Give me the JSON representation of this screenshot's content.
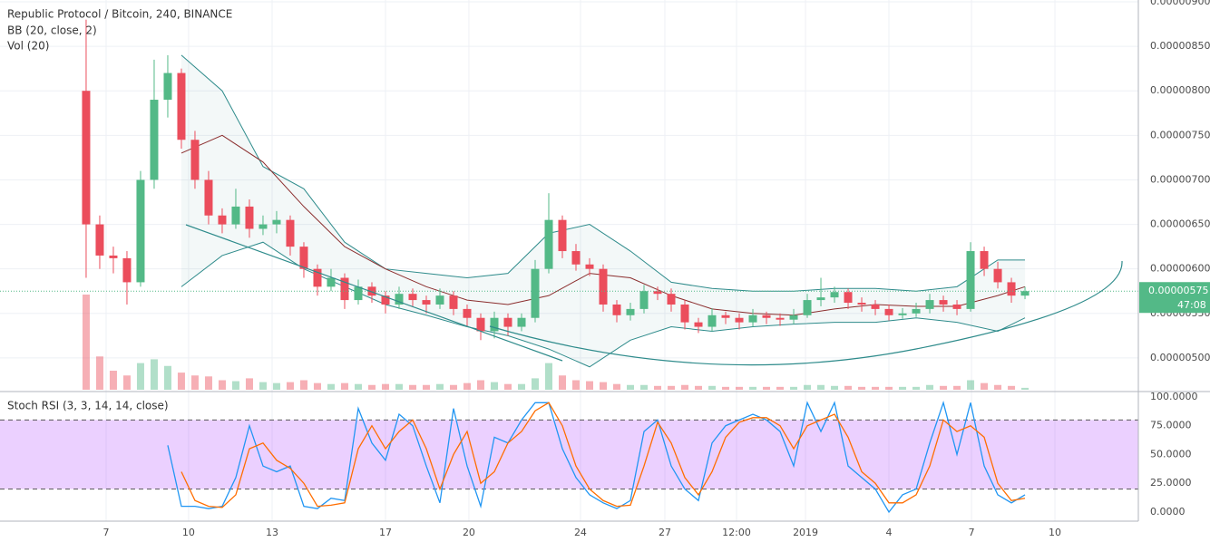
{
  "chart_data": [
    {
      "type": "candlestick",
      "title": "Republic Protocol / Bitcoin, 240, BINANCE",
      "indicators": [
        "BB (20, close, 2)",
        "Vol (20)"
      ],
      "up_color": "#53b987",
      "down_color": "#eb4d5c",
      "xlim": [
        -6.33,
        77.33
      ],
      "ylim": [
        4.643e-06,
        9.02e-06
      ],
      "yticks": [
        {
          "value": 5e-06,
          "label": "0.00000500"
        },
        {
          "value": 5.5e-06,
          "label": "0.00000550"
        },
        {
          "value": 6e-06,
          "label": "0.00000600"
        },
        {
          "value": 6.5e-06,
          "label": "0.00000650"
        },
        {
          "value": 7e-06,
          "label": "0.00000700"
        },
        {
          "value": 7.5e-06,
          "label": "0.00000750"
        },
        {
          "value": 8e-06,
          "label": "0.00000800"
        },
        {
          "value": 8.5e-06,
          "label": "0.00000850"
        },
        {
          "value": 9e-06,
          "label": "0.00000900"
        }
      ],
      "grid": true,
      "open": [
        8e-06,
        6.5e-06,
        6.15e-06,
        6.12e-06,
        5.85e-06,
        7e-06,
        7.9e-06,
        8.2e-06,
        7.45e-06,
        7e-06,
        6.6e-06,
        6.5e-06,
        6.7e-06,
        6.45e-06,
        6.5e-06,
        6.55e-06,
        6.25e-06,
        6e-06,
        5.8e-06,
        5.9e-06,
        5.65e-06,
        5.8e-06,
        5.7e-06,
        5.6e-06,
        5.72e-06,
        5.65e-06,
        5.6e-06,
        5.7e-06,
        5.55e-06,
        5.45e-06,
        5.3e-06,
        5.45e-06,
        5.35e-06,
        5.45e-06,
        6e-06,
        6.55e-06,
        6.2e-06,
        6.05e-06,
        6e-06,
        5.6e-06,
        5.48e-06,
        5.55e-06,
        5.75e-06,
        5.72e-06,
        5.6e-06,
        5.4e-06,
        5.35e-06,
        5.48e-06,
        5.45e-06,
        5.4e-06,
        5.48e-06,
        5.45e-06,
        5.43e-06,
        5.48e-06,
        5.65e-06,
        5.68e-06,
        5.74e-06,
        5.62e-06,
        5.6e-06,
        5.55e-06,
        5.48e-06,
        5.5e-06,
        5.55e-06,
        5.65e-06,
        5.6e-06,
        5.55e-06,
        6.2e-06,
        6e-06,
        5.85e-06,
        5.7e-06
      ],
      "high": [
        8.8e-06,
        6.6e-06,
        6.25e-06,
        6.2e-06,
        7.1e-06,
        8.35e-06,
        8.4e-06,
        8.25e-06,
        7.55e-06,
        7.1e-06,
        6.68e-06,
        6.9e-06,
        6.78e-06,
        6.6e-06,
        6.65e-06,
        6.6e-06,
        6.3e-06,
        6.05e-06,
        6e-06,
        5.95e-06,
        5.88e-06,
        5.85e-06,
        5.75e-06,
        5.8e-06,
        5.78e-06,
        5.7e-06,
        5.78e-06,
        5.75e-06,
        5.6e-06,
        5.5e-06,
        5.52e-06,
        5.5e-06,
        5.5e-06,
        6.1e-06,
        6.85e-06,
        6.6e-06,
        6.28e-06,
        6.12e-06,
        6.05e-06,
        5.65e-06,
        5.62e-06,
        5.82e-06,
        5.8e-06,
        5.78e-06,
        5.65e-06,
        5.45e-06,
        5.56e-06,
        5.52e-06,
        5.5e-06,
        5.55e-06,
        5.52e-06,
        5.5e-06,
        5.55e-06,
        5.72e-06,
        5.9e-06,
        5.8e-06,
        5.78e-06,
        5.68e-06,
        5.65e-06,
        5.6e-06,
        5.56e-06,
        5.62e-06,
        5.72e-06,
        5.7e-06,
        5.65e-06,
        6.3e-06,
        6.25e-06,
        6.08e-06,
        5.9e-06,
        5.8e-06
      ],
      "low": [
        5.9e-06,
        6e-06,
        5.95e-06,
        5.6e-06,
        5.8e-06,
        6.9e-06,
        7.7e-06,
        7.35e-06,
        6.9e-06,
        6.5e-06,
        6.4e-06,
        6.45e-06,
        6.35e-06,
        6.38e-06,
        6.4e-06,
        6.15e-06,
        5.9e-06,
        5.7e-06,
        5.75e-06,
        5.55e-06,
        5.6e-06,
        5.62e-06,
        5.5e-06,
        5.55e-06,
        5.58e-06,
        5.5e-06,
        5.55e-06,
        5.48e-06,
        5.35e-06,
        5.2e-06,
        5.22e-06,
        5.25e-06,
        5.3e-06,
        5.4e-06,
        5.95e-06,
        6.12e-06,
        5.98e-06,
        5.92e-06,
        5.52e-06,
        5.4e-06,
        5.42e-06,
        5.5e-06,
        5.65e-06,
        5.52e-06,
        5.32e-06,
        5.28e-06,
        5.3e-06,
        5.38e-06,
        5.32e-06,
        5.35e-06,
        5.38e-06,
        5.36e-06,
        5.38e-06,
        5.45e-06,
        5.58e-06,
        5.62e-06,
        5.55e-06,
        5.52e-06,
        5.48e-06,
        5.42e-06,
        5.44e-06,
        5.46e-06,
        5.5e-06,
        5.52e-06,
        5.48e-06,
        5.52e-06,
        5.92e-06,
        5.78e-06,
        5.62e-06,
        5.66e-06
      ],
      "close": [
        6.5e-06,
        6.15e-06,
        6.12e-06,
        5.85e-06,
        7e-06,
        7.9e-06,
        8.2e-06,
        7.45e-06,
        7e-06,
        6.6e-06,
        6.5e-06,
        6.7e-06,
        6.45e-06,
        6.5e-06,
        6.55e-06,
        6.25e-06,
        6e-06,
        5.8e-06,
        5.9e-06,
        5.65e-06,
        5.8e-06,
        5.7e-06,
        5.6e-06,
        5.72e-06,
        5.65e-06,
        5.6e-06,
        5.7e-06,
        5.55e-06,
        5.45e-06,
        5.3e-06,
        5.45e-06,
        5.35e-06,
        5.45e-06,
        6e-06,
        6.55e-06,
        6.2e-06,
        6.05e-06,
        6e-06,
        5.6e-06,
        5.48e-06,
        5.55e-06,
        5.75e-06,
        5.72e-06,
        5.6e-06,
        5.4e-06,
        5.35e-06,
        5.48e-06,
        5.45e-06,
        5.4e-06,
        5.48e-06,
        5.45e-06,
        5.43e-06,
        5.48e-06,
        5.65e-06,
        5.68e-06,
        5.74e-06,
        5.62e-06,
        5.6e-06,
        5.55e-06,
        5.48e-06,
        5.5e-06,
        5.55e-06,
        5.65e-06,
        5.6e-06,
        5.55e-06,
        6.2e-06,
        6e-06,
        5.85e-06,
        5.7e-06,
        5.75e-06
      ],
      "volume": [
        100,
        35,
        20,
        15,
        28,
        32,
        25,
        18,
        15,
        14,
        10,
        9,
        12,
        8,
        7,
        8,
        10,
        7,
        6,
        7,
        6,
        5,
        6,
        6,
        5,
        5,
        6,
        5,
        7,
        10,
        8,
        6,
        6,
        12,
        28,
        15,
        10,
        9,
        8,
        6,
        5,
        5,
        4,
        4,
        5,
        4,
        4,
        3,
        3,
        3,
        3,
        3,
        3,
        5,
        5,
        4,
        4,
        3,
        3,
        3,
        3,
        3,
        5,
        4,
        4,
        10,
        7,
        5,
        4,
        2
      ],
      "vlim": [
        0,
        100
      ],
      "bb": {
        "x": [
          7,
          10,
          13,
          16,
          19,
          22,
          25,
          28,
          31,
          34,
          37,
          40,
          43,
          46,
          49,
          52,
          55,
          58,
          61,
          64,
          67,
          69
        ],
        "upper": [
          8.4e-06,
          8e-06,
          7.15e-06,
          6.9e-06,
          6.3e-06,
          6e-06,
          5.95e-06,
          5.9e-06,
          5.95e-06,
          6.4e-06,
          6.5e-06,
          6.2e-06,
          5.85e-06,
          5.78e-06,
          5.75e-06,
          5.75e-06,
          5.78e-06,
          5.78e-06,
          5.75e-06,
          5.8e-06,
          6.1e-06,
          6.1e-06
        ],
        "middle": [
          7.3e-06,
          7.5e-06,
          7.2e-06,
          6.7e-06,
          6.25e-06,
          6e-06,
          5.8e-06,
          5.65e-06,
          5.6e-06,
          5.7e-06,
          5.95e-06,
          5.9e-06,
          5.7e-06,
          5.55e-06,
          5.5e-06,
          5.48e-06,
          5.55e-06,
          5.6e-06,
          5.58e-06,
          5.58e-06,
          5.7e-06,
          5.8e-06
        ],
        "lower": [
          5.8e-06,
          6.15e-06,
          6.3e-06,
          6e-06,
          5.8e-06,
          5.6e-06,
          5.48e-06,
          5.35e-06,
          5.25e-06,
          5.1e-06,
          4.9e-06,
          5.2e-06,
          5.35e-06,
          5.3e-06,
          5.35e-06,
          5.38e-06,
          5.4e-06,
          5.4e-06,
          5.45e-06,
          5.4e-06,
          5.3e-06,
          5.45e-06
        ],
        "band_color": "#2e8b8b",
        "middle_color": "#8b2d2d"
      },
      "last": {
        "value": 5.75e-06,
        "label": "0.00000575"
      },
      "countdown": "47:08"
    },
    {
      "type": "line",
      "title": "Stoch RSI (3, 3, 14, 14, close)",
      "xlim": [
        -6.33,
        77.33
      ],
      "ylim": [
        -7.9,
        104.7
      ],
      "yticks": [
        {
          "value": 0,
          "label": "0.0000"
        },
        {
          "value": 25,
          "label": "25.0000"
        },
        {
          "value": 50,
          "label": "50.0000"
        },
        {
          "value": 75,
          "label": "75.0000"
        },
        {
          "value": 100,
          "label": "100.0000"
        }
      ],
      "band": [
        20,
        80
      ],
      "xticks": [
        {
          "value": 1.47,
          "label": "7"
        },
        {
          "value": 7.53,
          "label": "10"
        },
        {
          "value": 13.67,
          "label": "13"
        },
        {
          "value": 22,
          "label": "17"
        },
        {
          "value": 28.13,
          "label": "20"
        },
        {
          "value": 36.33,
          "label": "24"
        },
        {
          "value": 42.53,
          "label": "27"
        },
        {
          "value": 47.8,
          "label": "12:00"
        },
        {
          "value": 52.87,
          "label": "2019"
        },
        {
          "value": 59,
          "label": "4"
        },
        {
          "value": 65.07,
          "label": "7"
        },
        {
          "value": 71.2,
          "label": "10"
        }
      ],
      "series": [
        {
          "color": "#2196f3",
          "values": [
            null,
            null,
            null,
            null,
            null,
            null,
            58,
            5,
            5,
            3,
            5,
            30,
            75,
            40,
            35,
            40,
            5,
            3,
            12,
            10,
            90,
            60,
            45,
            85,
            75,
            40,
            8,
            90,
            40,
            5,
            65,
            60,
            80,
            95,
            95,
            55,
            30,
            15,
            8,
            3,
            10,
            70,
            80,
            40,
            20,
            10,
            60,
            75,
            80,
            85,
            80,
            70,
            40,
            95,
            70,
            95,
            40,
            30,
            20,
            0,
            15,
            20,
            60,
            95,
            50,
            95,
            40,
            15,
            8,
            15
          ]
        },
        {
          "color": "#ff6d00",
          "values": [
            null,
            null,
            null,
            null,
            null,
            null,
            null,
            35,
            10,
            5,
            4,
            15,
            55,
            60,
            45,
            38,
            25,
            5,
            6,
            8,
            55,
            75,
            55,
            70,
            80,
            55,
            20,
            50,
            70,
            25,
            35,
            60,
            70,
            88,
            95,
            75,
            40,
            20,
            10,
            5,
            6,
            40,
            78,
            60,
            30,
            15,
            35,
            65,
            78,
            82,
            82,
            75,
            55,
            75,
            80,
            85,
            65,
            35,
            25,
            8,
            8,
            15,
            40,
            80,
            70,
            75,
            65,
            25,
            10,
            12
          ]
        }
      ]
    }
  ]
}
